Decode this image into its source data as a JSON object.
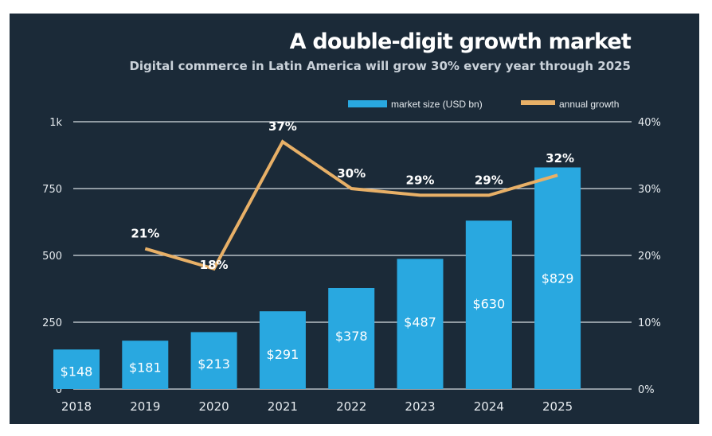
{
  "chart_data": {
    "type": "bar",
    "title": "A double-digit growth market",
    "subtitle": "Digital commerce in Latin America will grow 30% every year through 2025",
    "categories": [
      "2018",
      "2019",
      "2020",
      "2021",
      "2022",
      "2023",
      "2024",
      "2025"
    ],
    "series": [
      {
        "name": "market size (USD bn)",
        "kind": "bar",
        "axis": "left",
        "values": [
          148,
          181,
          213,
          291,
          378,
          487,
          630,
          829
        ],
        "labels": [
          "$148",
          "$181",
          "$213",
          "$291",
          "$378",
          "$487",
          "$630",
          "$829"
        ]
      },
      {
        "name": "annual growth",
        "kind": "line",
        "axis": "right",
        "values": [
          null,
          21,
          18,
          37,
          30,
          29,
          29,
          32
        ],
        "labels": [
          "",
          "21%",
          "18%",
          "37%",
          "30%",
          "29%",
          "29%",
          "32%"
        ]
      }
    ],
    "y_left": {
      "ticks": [
        0,
        250,
        500,
        750,
        1000
      ],
      "tick_labels": [
        "0",
        "250",
        "500",
        "750",
        "1k"
      ],
      "lim": [
        0,
        1000
      ]
    },
    "y_right": {
      "ticks": [
        0,
        10,
        20,
        30,
        40
      ],
      "tick_labels": [
        "0%",
        "10%",
        "20%",
        "30%",
        "40%"
      ],
      "lim": [
        0,
        40
      ]
    },
    "legend": {
      "position": "top-right",
      "entries": [
        {
          "label": "market size (USD bn)",
          "color": "#29a8e0"
        },
        {
          "label": "annual growth",
          "color": "#e8b067"
        }
      ]
    },
    "grid": true
  },
  "colors": {
    "background": "#1b2a38",
    "bar": "#29a8e0",
    "line": "#e8b067",
    "grid": "#d7dde2",
    "text": "#ffffff"
  }
}
